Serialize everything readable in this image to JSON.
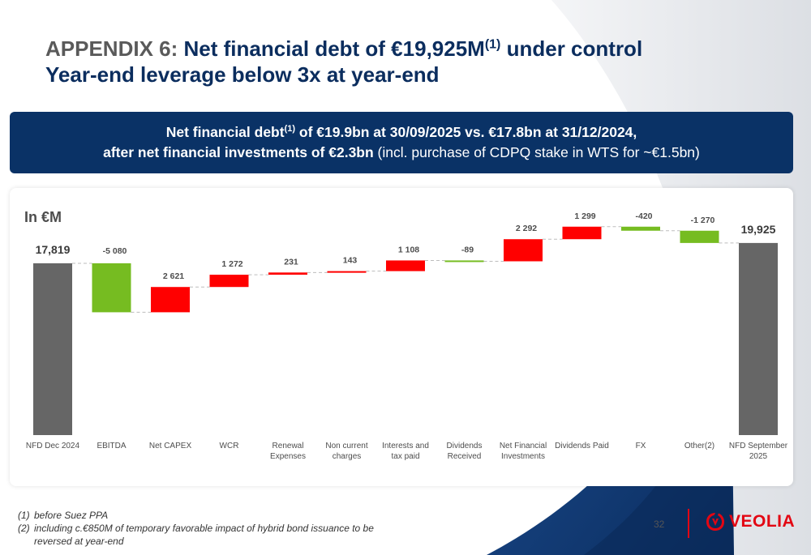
{
  "title": {
    "prefix": "APPENDIX 6: ",
    "line1_main": "Net financial debt of €19,925M",
    "line1_sup": "(1)",
    "line1_end": " under control",
    "line2": "Year-end leverage below 3x at year-end"
  },
  "banner": {
    "line1_a": "Net financial debt",
    "line1_sup": "(1)",
    "line1_b": " of €19.9bn at 30/09/2025 vs. €17.8bn at 31/12/2024,",
    "line2_bold": "after net financial investments of €2.3bn",
    "line2_normal": " (incl. purchase of CDPQ stake in WTS for ~€1.5bn)"
  },
  "unit_label": "In €M",
  "chart_data": {
    "type": "bar",
    "subtype": "waterfall",
    "categories": [
      "NFD Dec 2024",
      "EBITDA",
      "Net CAPEX",
      "WCR",
      "Renewal Expenses",
      "Non current charges",
      "Interests and tax paid",
      "Dividends Received",
      "Net Financial Investments",
      "Dividends Paid",
      "FX",
      "Other(2)",
      "NFD September 2025"
    ],
    "values": [
      17819,
      -5080,
      2621,
      1272,
      231,
      143,
      1108,
      -89,
      2292,
      1299,
      -420,
      -1270,
      19925
    ],
    "value_labels": [
      "17,819",
      "-5 080",
      "2 621",
      "1 272",
      "231",
      "143",
      "1 108",
      "-89",
      "2 292",
      "1 299",
      "-420",
      "-1 270",
      "19,925"
    ],
    "kinds": [
      "total",
      "delta",
      "delta",
      "delta",
      "delta",
      "delta",
      "delta",
      "delta",
      "delta",
      "delta",
      "delta",
      "delta",
      "total"
    ],
    "colors": {
      "total": "#666666",
      "decrease": "#76bc21",
      "increase": "#ff0000"
    },
    "grid": false,
    "legend": "none"
  },
  "footnotes": [
    {
      "num": "(1)",
      "text": "before Suez PPA"
    },
    {
      "num": "(2)",
      "text": "including c.€850M of temporary favorable impact of hybrid bond issuance to be reversed at year-end"
    }
  ],
  "page_number": "32",
  "logo": {
    "text": "VEOLIA",
    "color": "#e30613"
  }
}
